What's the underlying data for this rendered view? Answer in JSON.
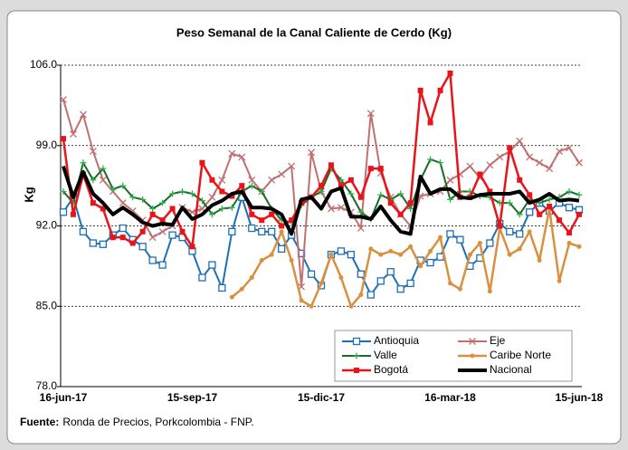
{
  "chart_data": {
    "type": "line",
    "title": "Peso Semanal de la Canal Caliente de Cerdo (Kg)",
    "y_label": "Kg",
    "source_label": "Fuente:",
    "source": "Ronda de Precios, Porkcolombia - FNP.",
    "categories": [
      "16-jun-17",
      null,
      null,
      null,
      null,
      null,
      null,
      null,
      null,
      null,
      null,
      null,
      null,
      "15-sep-17",
      null,
      null,
      null,
      null,
      null,
      null,
      null,
      null,
      null,
      null,
      null,
      null,
      "15-dic-17",
      null,
      null,
      null,
      null,
      null,
      null,
      null,
      null,
      null,
      null,
      null,
      null,
      "16-mar-18",
      null,
      null,
      null,
      null,
      null,
      null,
      null,
      null,
      null,
      null,
      null,
      null,
      "15-jun-18"
    ],
    "ylim": [
      78,
      106
    ],
    "yticks": [
      {
        "value": 78,
        "label": "78.0"
      },
      {
        "value": 85,
        "label": "85.0"
      },
      {
        "value": 92,
        "label": "92.0"
      },
      {
        "value": 99,
        "label": "99.0"
      },
      {
        "value": 106,
        "label": "106.0"
      }
    ],
    "grid": true,
    "series": [
      {
        "name": "Antioquia",
        "color": "#1f6fb4",
        "marker": "square-open",
        "width": 2,
        "values": [
          93.2,
          94.5,
          91.5,
          90.5,
          90.4,
          91.2,
          91.8,
          90.8,
          90.2,
          89,
          88.6,
          91.2,
          91,
          89.8,
          87.5,
          88.6,
          86.6,
          91.5,
          94.5,
          91.8,
          91.5,
          91.5,
          90,
          91.2,
          89.6,
          87.8,
          86.8,
          89.5,
          89.8,
          89.5,
          87.8,
          86,
          87.2,
          88,
          86.5,
          87,
          89,
          88.8,
          89.3,
          91.3,
          90.8,
          88.5,
          89.2,
          90.5,
          92.2,
          91.5,
          91.3,
          93.2,
          94,
          93.3,
          94,
          93.6,
          93.4
        ]
      },
      {
        "name": "Eje",
        "color": "#c07070",
        "marker": "x",
        "width": 2,
        "values": [
          103,
          100,
          101.7,
          98.5,
          96,
          95,
          94,
          93.3,
          92.5,
          91,
          91.5,
          92,
          93.6,
          93.2,
          93.5,
          94.5,
          96,
          98.3,
          98,
          96,
          95,
          96,
          96.5,
          97.2,
          86.7,
          98.4,
          95,
          93.5,
          93.6,
          93.2,
          91.8,
          101.8,
          96.6,
          94.5,
          93,
          92,
          94.6,
          94.8,
          95,
          96,
          96.5,
          97.2,
          96.2,
          97.3,
          98,
          98.5,
          99.4,
          98,
          97.5,
          97,
          98.5,
          98.8,
          97.5
        ]
      },
      {
        "name": "Valle",
        "color": "#1a6b2a",
        "marker": "plus",
        "width": 2,
        "values": [
          95,
          94,
          97.5,
          96,
          97,
          95.2,
          95.5,
          94.5,
          94.3,
          93.5,
          94,
          94.8,
          95,
          94.8,
          94.2,
          93,
          93.5,
          93.6,
          95,
          95.5,
          95,
          93.5,
          92.5,
          92.3,
          93.8,
          94.5,
          95,
          97,
          96,
          94.8,
          93.2,
          92.6,
          94.7,
          94.3,
          94.8,
          93.5,
          96,
          97.8,
          97.5,
          94.3,
          95,
          95,
          94.6,
          94.5,
          94,
          94,
          93,
          94.3,
          94,
          94.3,
          94.5,
          95,
          94.7
        ]
      },
      {
        "name": "Caribe Norte",
        "color": "#d9903f",
        "marker": "circle",
        "width": 2.5,
        "values": [
          null,
          null,
          null,
          null,
          null,
          null,
          null,
          null,
          null,
          null,
          null,
          null,
          null,
          null,
          null,
          null,
          null,
          85.8,
          86.5,
          87.5,
          89,
          89.5,
          91.5,
          89,
          85.5,
          85,
          87,
          89.5,
          87.5,
          85,
          86,
          90,
          89.5,
          89.8,
          89.5,
          90.2,
          88.5,
          89.8,
          91,
          87,
          86.5,
          89.5,
          90.5,
          86.3,
          91.8,
          89.5,
          90,
          91.5,
          89,
          93.5,
          87.2,
          90.5,
          90.2
        ]
      },
      {
        "name": "Bogotá",
        "color": "#e8141a",
        "marker": "square",
        "width": 2.5,
        "values": [
          99.6,
          93,
          96.5,
          94,
          93.5,
          91,
          91,
          90.5,
          91.5,
          93,
          92.5,
          93.5,
          91.5,
          90.2,
          97.5,
          96,
          95,
          94.6,
          95.5,
          93,
          92.5,
          93,
          92,
          92.5,
          94,
          94.5,
          95.5,
          97.3,
          95.5,
          96,
          94.5,
          97,
          97,
          94,
          93,
          94,
          103.8,
          101,
          103.8,
          105.3,
          94.5,
          94.5,
          96.5,
          95,
          92,
          98.8,
          96,
          94.7,
          93,
          93.7,
          92.5,
          91.4,
          93
        ]
      },
      {
        "name": "Nacional",
        "color": "#000000",
        "marker": "none",
        "width": 4,
        "values": [
          97.2,
          94.5,
          96.7,
          94.8,
          94,
          93,
          93.6,
          93,
          92.3,
          92,
          92.2,
          92.1,
          93.6,
          92.6,
          93,
          93.8,
          94.2,
          94.8,
          95,
          93.6,
          93.6,
          93.5,
          93,
          91.3,
          94.3,
          94.5,
          93.5,
          95,
          95.3,
          92.8,
          92.8,
          92.6,
          93.7,
          92.5,
          91.5,
          91.3,
          96.3,
          94.8,
          95.2,
          95.2,
          94.5,
          94.4,
          94.7,
          94.8,
          94.8,
          94.8,
          95,
          94,
          94.3,
          94.8,
          94.2,
          94.3,
          94.2
        ]
      }
    ]
  }
}
